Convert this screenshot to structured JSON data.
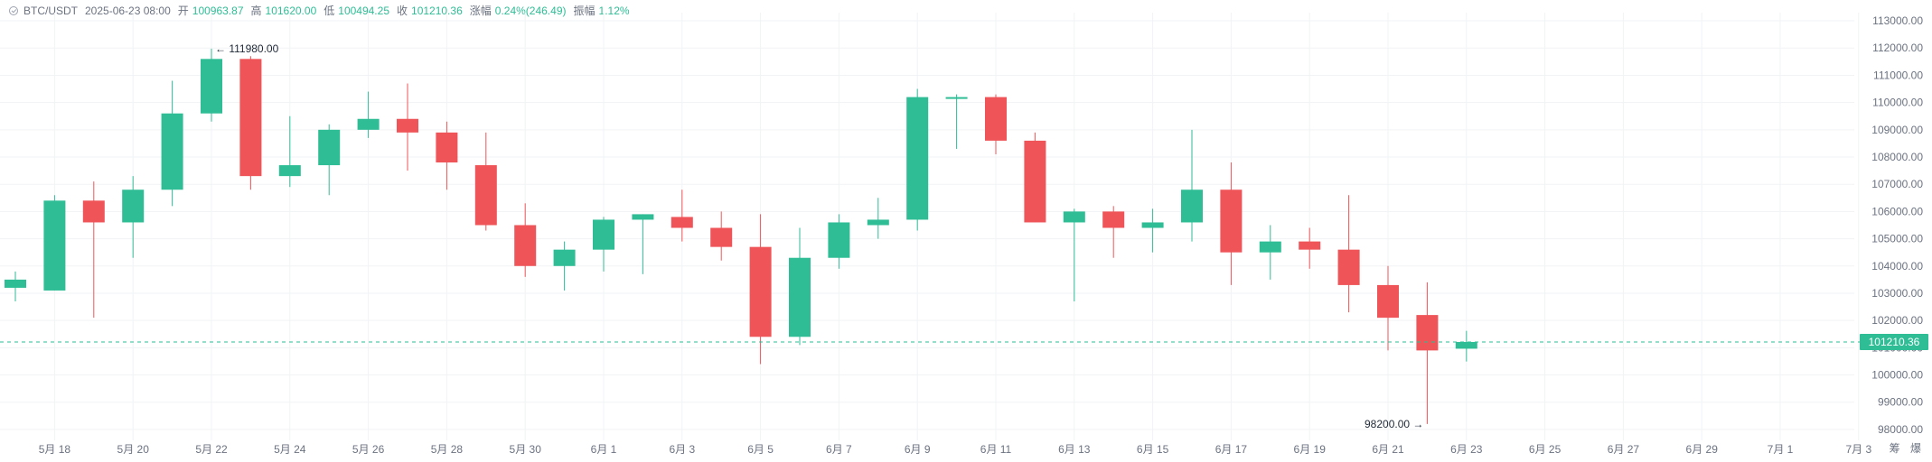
{
  "header": {
    "symbol": "BTC/USDT",
    "datetime": "2025-06-23 08:00",
    "open_label": "开",
    "open": "100963.87",
    "high_label": "高",
    "high": "101620.00",
    "low_label": "低",
    "low": "100494.25",
    "close_label": "收",
    "close": "101210.36",
    "change_label": "涨幅",
    "change": "0.24%(246.49)",
    "amplitude_label": "振幅",
    "amplitude": "1.12%"
  },
  "axis_tools": {
    "mode_a": "筹",
    "mode_b": "爆"
  },
  "colors": {
    "up": "#2ebd95",
    "down": "#ef5458",
    "grid": "#f1f3f5",
    "last_price_line": "#2ebd95"
  },
  "chart_data": {
    "type": "candlestick",
    "ylim": [
      97600,
      113300
    ],
    "y_ticks": [
      98000,
      99000,
      100000,
      101000,
      102000,
      103000,
      104000,
      105000,
      106000,
      107000,
      108000,
      109000,
      110000,
      111000,
      112000,
      113000
    ],
    "y_tick_labels": [
      "98000.00",
      "99000.00",
      "100000.00",
      "101000.00",
      "102000.00",
      "103000.00",
      "104000.00",
      "105000.00",
      "106000.00",
      "107000.00",
      "108000.00",
      "109000.00",
      "110000.00",
      "111000.00",
      "112000.00",
      "113000.00"
    ],
    "x_labels": [
      {
        "label": "5月 18",
        "index": 1
      },
      {
        "label": "5月 20",
        "index": 3
      },
      {
        "label": "5月 22",
        "index": 5
      },
      {
        "label": "5月 24",
        "index": 7
      },
      {
        "label": "5月 26",
        "index": 9
      },
      {
        "label": "5月 28",
        "index": 11
      },
      {
        "label": "5月 30",
        "index": 13
      },
      {
        "label": "6月 1",
        "index": 15
      },
      {
        "label": "6月 3",
        "index": 17
      },
      {
        "label": "6月 5",
        "index": 19
      },
      {
        "label": "6月 7",
        "index": 21
      },
      {
        "label": "6月 9",
        "index": 23
      },
      {
        "label": "6月 11",
        "index": 25
      },
      {
        "label": "6月 13",
        "index": 27
      },
      {
        "label": "6月 15",
        "index": 29
      },
      {
        "label": "6月 17",
        "index": 31
      },
      {
        "label": "6月 19",
        "index": 33
      },
      {
        "label": "6月 21",
        "index": 35
      },
      {
        "label": "6月 23",
        "index": 37
      },
      {
        "label": "6月 25",
        "index": 39
      },
      {
        "label": "6月 27",
        "index": 41
      },
      {
        "label": "6月 29",
        "index": 43
      },
      {
        "label": "7月 1",
        "index": 45
      },
      {
        "label": "7月 3",
        "index": 47
      }
    ],
    "candles": [
      {
        "o": 103200,
        "h": 103800,
        "l": 102700,
        "c": 103500
      },
      {
        "o": 103100,
        "h": 106600,
        "l": 103100,
        "c": 106400
      },
      {
        "o": 106400,
        "h": 107100,
        "l": 102100,
        "c": 105600
      },
      {
        "o": 105600,
        "h": 107300,
        "l": 104300,
        "c": 106800
      },
      {
        "o": 106800,
        "h": 110800,
        "l": 106200,
        "c": 109600
      },
      {
        "o": 109600,
        "h": 111980,
        "l": 109300,
        "c": 111600
      },
      {
        "o": 111600,
        "h": 111700,
        "l": 106800,
        "c": 107300
      },
      {
        "o": 107300,
        "h": 109500,
        "l": 106900,
        "c": 107700
      },
      {
        "o": 107700,
        "h": 109200,
        "l": 106600,
        "c": 109000
      },
      {
        "o": 109000,
        "h": 110400,
        "l": 108700,
        "c": 109400
      },
      {
        "o": 109400,
        "h": 110700,
        "l": 107500,
        "c": 108900
      },
      {
        "o": 108900,
        "h": 109300,
        "l": 106800,
        "c": 107800
      },
      {
        "o": 107700,
        "h": 108900,
        "l": 105300,
        "c": 105500
      },
      {
        "o": 105500,
        "h": 106300,
        "l": 103600,
        "c": 104000
      },
      {
        "o": 104000,
        "h": 104900,
        "l": 103100,
        "c": 104600
      },
      {
        "o": 104600,
        "h": 105800,
        "l": 103800,
        "c": 105700
      },
      {
        "o": 105700,
        "h": 105900,
        "l": 103700,
        "c": 105900
      },
      {
        "o": 105800,
        "h": 106800,
        "l": 104900,
        "c": 105400
      },
      {
        "o": 105400,
        "h": 106000,
        "l": 104200,
        "c": 104700
      },
      {
        "o": 104700,
        "h": 105900,
        "l": 100400,
        "c": 101400
      },
      {
        "o": 101400,
        "h": 105400,
        "l": 101100,
        "c": 104300
      },
      {
        "o": 104300,
        "h": 105900,
        "l": 103900,
        "c": 105600
      },
      {
        "o": 105500,
        "h": 106500,
        "l": 105000,
        "c": 105700
      },
      {
        "o": 105700,
        "h": 110500,
        "l": 105300,
        "c": 110200
      },
      {
        "o": 110200,
        "h": 110300,
        "l": 108300,
        "c": 110200
      },
      {
        "o": 110200,
        "h": 110300,
        "l": 108100,
        "c": 108600
      },
      {
        "o": 108600,
        "h": 108900,
        "l": 105600,
        "c": 105600
      },
      {
        "o": 105600,
        "h": 106100,
        "l": 102700,
        "c": 106000
      },
      {
        "o": 106000,
        "h": 106200,
        "l": 104300,
        "c": 105400
      },
      {
        "o": 105400,
        "h": 106100,
        "l": 104500,
        "c": 105600
      },
      {
        "o": 105600,
        "h": 109000,
        "l": 104900,
        "c": 106800
      },
      {
        "o": 106800,
        "h": 107800,
        "l": 103300,
        "c": 104500
      },
      {
        "o": 104500,
        "h": 105500,
        "l": 103500,
        "c": 104900
      },
      {
        "o": 104900,
        "h": 105400,
        "l": 103900,
        "c": 104600
      },
      {
        "o": 104600,
        "h": 106600,
        "l": 102300,
        "c": 103300
      },
      {
        "o": 103300,
        "h": 104000,
        "l": 100900,
        "c": 102100
      },
      {
        "o": 102200,
        "h": 103400,
        "l": 98200,
        "c": 100900
      },
      {
        "o": 100964,
        "h": 101620,
        "l": 100494,
        "c": 101210
      }
    ],
    "annotations": [
      {
        "text": "111980.00",
        "index": 5,
        "value": 111980,
        "side": "right"
      },
      {
        "text": "98200.00",
        "index": 36,
        "value": 98200,
        "side": "left"
      }
    ],
    "last_price": 101210.36,
    "last_price_label": "101210.36",
    "grid": true
  }
}
